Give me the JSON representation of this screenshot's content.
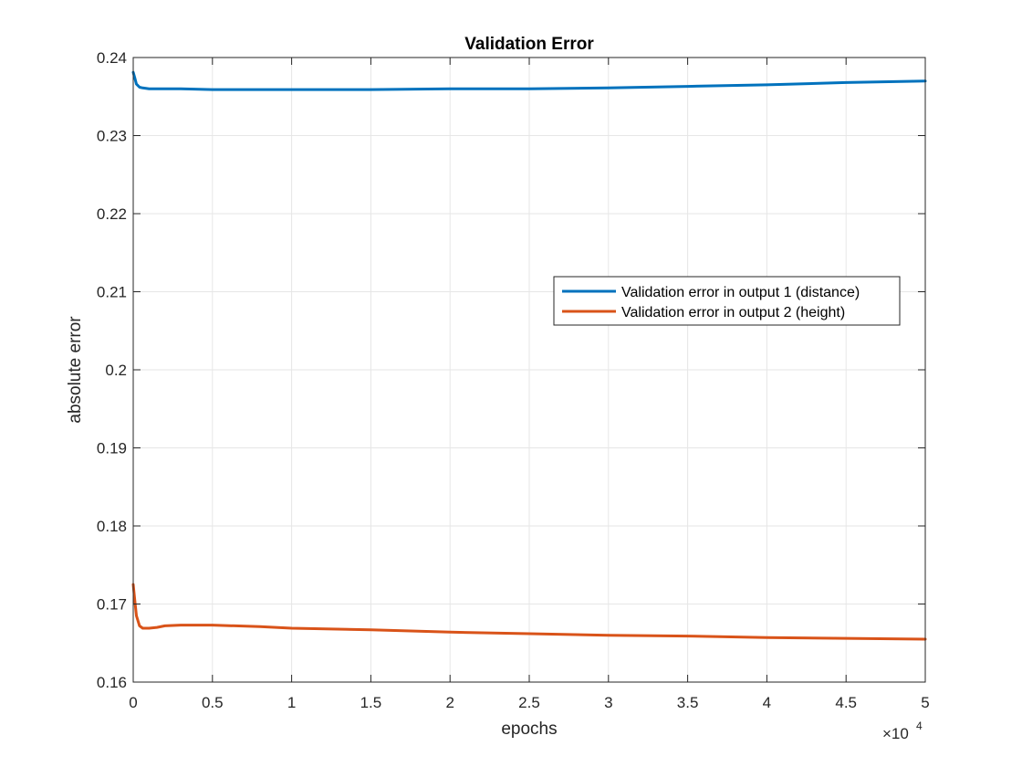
{
  "chart_data": {
    "type": "line",
    "title": "Validation Error",
    "xlabel": "epochs",
    "ylabel": "absolute error",
    "x_exponent_label": "×10",
    "x_exponent_power": "4",
    "xlim": [
      0,
      5
    ],
    "ylim": [
      0.16,
      0.24
    ],
    "xticks": [
      "0",
      "0.5",
      "1",
      "1.5",
      "2",
      "2.5",
      "3",
      "3.5",
      "4",
      "4.5",
      "5"
    ],
    "yticks": [
      "0.16",
      "0.17",
      "0.18",
      "0.19",
      "0.2",
      "0.21",
      "0.22",
      "0.23",
      "0.24"
    ],
    "grid": true,
    "legend_position": "right-middle",
    "series": [
      {
        "name": "Validation error in output 1 (distance)",
        "color": "#0072bd",
        "x": [
          0,
          0.01,
          0.02,
          0.04,
          0.06,
          0.1,
          0.2,
          0.3,
          0.5,
          0.8,
          1.0,
          1.5,
          2.0,
          2.5,
          3.0,
          3.5,
          4.0,
          4.5,
          5.0
        ],
        "y": [
          0.2381,
          0.2374,
          0.2366,
          0.2362,
          0.2361,
          0.236,
          0.236,
          0.236,
          0.2359,
          0.2359,
          0.2359,
          0.2359,
          0.236,
          0.236,
          0.2361,
          0.2363,
          0.2365,
          0.2368,
          0.237
        ]
      },
      {
        "name": "Validation error in output 2 (height)",
        "color": "#d95319",
        "x": [
          0,
          0.01,
          0.02,
          0.04,
          0.06,
          0.1,
          0.15,
          0.2,
          0.3,
          0.5,
          0.8,
          1.0,
          1.5,
          2.0,
          2.5,
          3.0,
          3.5,
          4.0,
          4.5,
          5.0
        ],
        "y": [
          0.1725,
          0.1705,
          0.1685,
          0.1672,
          0.1669,
          0.1669,
          0.167,
          0.1672,
          0.1673,
          0.1673,
          0.1671,
          0.1669,
          0.1667,
          0.1664,
          0.1662,
          0.166,
          0.1659,
          0.1657,
          0.1656,
          0.1655
        ]
      }
    ]
  }
}
